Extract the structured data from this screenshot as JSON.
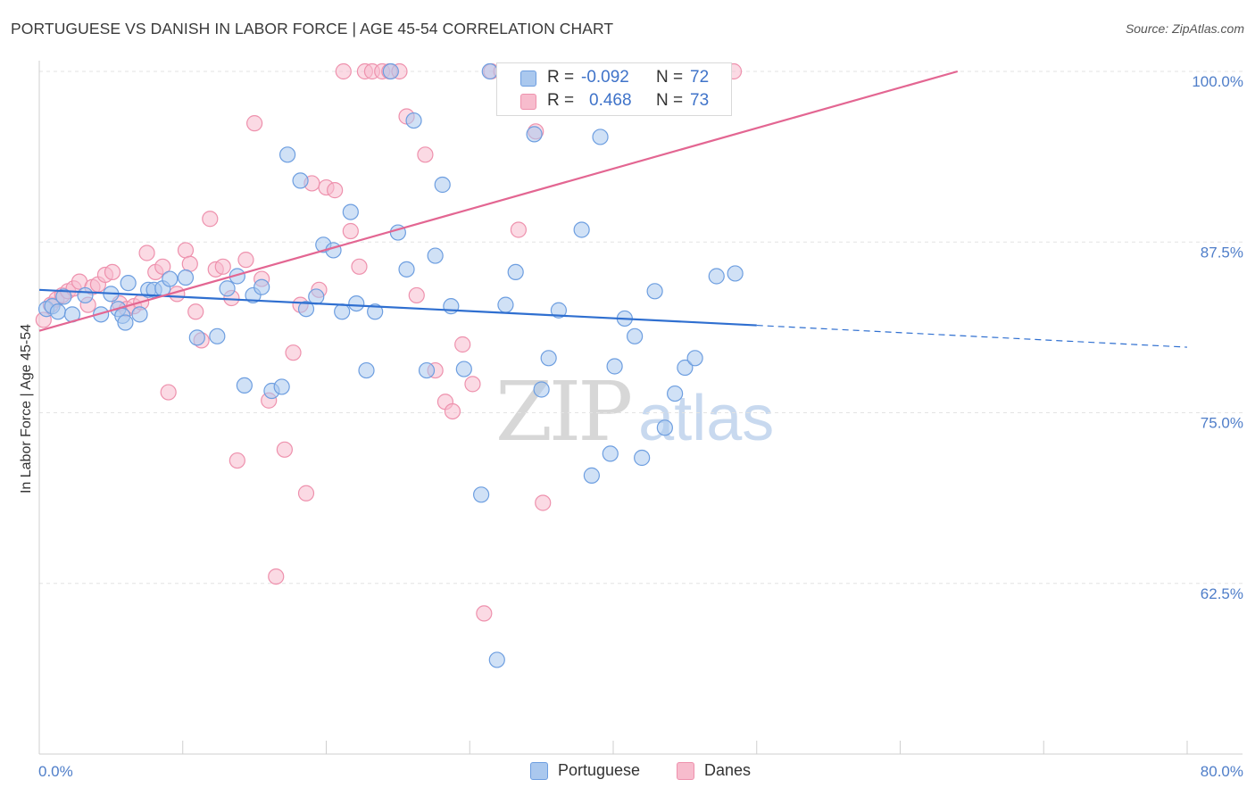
{
  "header": {
    "title": "PORTUGUESE VS DANISH IN LABOR FORCE | AGE 45-54 CORRELATION CHART",
    "source": "Source: ZipAtlas.com"
  },
  "watermark": {
    "zip": "ZIP",
    "atlas": "atlas"
  },
  "legend_top": {
    "rows": [
      {
        "r_label": "R =",
        "r_value": "-0.092",
        "n_label": "N =",
        "n_value": "72"
      },
      {
        "r_label": "R =",
        "r_value": "0.468",
        "n_label": "N =",
        "n_value": "73"
      }
    ]
  },
  "legend_bottom": {
    "items": [
      {
        "label": "Portuguese"
      },
      {
        "label": "Danes"
      }
    ]
  },
  "colors": {
    "portuguese_fill": "#aac8ee",
    "portuguese_stroke": "#6d9ee0",
    "portuguese_line": "#2f6fd0",
    "danes_fill": "#f7bccd",
    "danes_stroke": "#ee91ad",
    "danes_line": "#e36692",
    "tick_label": "#4f7ec9",
    "grid": "#e3e3e3"
  },
  "chart_data": {
    "type": "scatter",
    "title": "PORTUGUESE VS DANISH IN LABOR FORCE | AGE 45-54 CORRELATION CHART",
    "xlabel": "",
    "ylabel": "In Labor Force | Age 45-54",
    "xlim": [
      0,
      80
    ],
    "ylim": [
      50,
      100
    ],
    "x_tick_labels": [
      {
        "value": 0,
        "label": "0.0%"
      },
      {
        "value": 80,
        "label": "80.0%"
      }
    ],
    "y_tick_labels": [
      {
        "value": 100,
        "label": "100.0%"
      },
      {
        "value": 87.5,
        "label": "87.5%"
      },
      {
        "value": 75,
        "label": "75.0%"
      },
      {
        "value": 62.5,
        "label": "62.5%"
      }
    ],
    "grid": true,
    "legend_position": "bottom",
    "series": [
      {
        "name": "Portuguese",
        "r": -0.092,
        "n": 72,
        "trend": {
          "x0": 0,
          "y0": 84.0,
          "x1": 50,
          "y1": 81.4,
          "dash_x1": 80,
          "dash_y1": 79.8
        },
        "points": [
          [
            0.5,
            82.6
          ],
          [
            0.9,
            82.8
          ],
          [
            1.3,
            82.4
          ],
          [
            1.7,
            83.5
          ],
          [
            2.3,
            82.2
          ],
          [
            3.2,
            83.6
          ],
          [
            4.3,
            82.2
          ],
          [
            5.0,
            83.7
          ],
          [
            5.5,
            82.6
          ],
          [
            5.8,
            82.1
          ],
          [
            6.0,
            81.6
          ],
          [
            7.0,
            82.2
          ],
          [
            7.6,
            84.0
          ],
          [
            8.0,
            84.0
          ],
          [
            6.2,
            84.5
          ],
          [
            8.6,
            84.1
          ],
          [
            9.1,
            84.8
          ],
          [
            10.2,
            84.9
          ],
          [
            11.0,
            80.5
          ],
          [
            12.4,
            80.6
          ],
          [
            13.1,
            84.1
          ],
          [
            13.8,
            85.0
          ],
          [
            14.3,
            77.0
          ],
          [
            14.9,
            83.6
          ],
          [
            15.5,
            84.2
          ],
          [
            16.2,
            76.6
          ],
          [
            16.9,
            76.9
          ],
          [
            17.3,
            93.9
          ],
          [
            18.2,
            92.0
          ],
          [
            18.6,
            82.6
          ],
          [
            19.3,
            83.5
          ],
          [
            19.8,
            87.3
          ],
          [
            20.5,
            86.9
          ],
          [
            21.1,
            82.4
          ],
          [
            21.7,
            89.7
          ],
          [
            22.1,
            83.0
          ],
          [
            22.8,
            78.1
          ],
          [
            23.4,
            82.4
          ],
          [
            24.5,
            100.0
          ],
          [
            25.0,
            88.2
          ],
          [
            25.6,
            85.5
          ],
          [
            26.1,
            96.4
          ],
          [
            27.0,
            78.1
          ],
          [
            27.6,
            86.5
          ],
          [
            28.1,
            91.7
          ],
          [
            28.7,
            82.8
          ],
          [
            29.6,
            78.2
          ],
          [
            30.8,
            69.0
          ],
          [
            31.4,
            100.0
          ],
          [
            31.9,
            56.9
          ],
          [
            32.5,
            82.9
          ],
          [
            33.2,
            85.3
          ],
          [
            34.1,
            100.0
          ],
          [
            34.5,
            95.4
          ],
          [
            35.0,
            76.7
          ],
          [
            35.5,
            79.0
          ],
          [
            36.2,
            82.5
          ],
          [
            37.8,
            88.4
          ],
          [
            38.5,
            70.4
          ],
          [
            39.1,
            95.2
          ],
          [
            39.8,
            72.0
          ],
          [
            40.1,
            78.4
          ],
          [
            40.8,
            81.9
          ],
          [
            41.5,
            80.6
          ],
          [
            42.0,
            71.7
          ],
          [
            42.9,
            83.9
          ],
          [
            43.6,
            73.9
          ],
          [
            44.3,
            76.4
          ],
          [
            45.0,
            78.3
          ],
          [
            45.7,
            79.0
          ],
          [
            47.2,
            85.0
          ],
          [
            48.5,
            85.2
          ]
        ]
      },
      {
        "name": "Danes",
        "r": 0.468,
        "n": 73,
        "trend": {
          "x0": 0,
          "y0": 81.0,
          "x1": 64,
          "y1": 100.0
        },
        "points": [
          [
            0.3,
            81.8
          ],
          [
            0.8,
            82.9
          ],
          [
            1.2,
            83.3
          ],
          [
            1.6,
            83.6
          ],
          [
            2.0,
            83.9
          ],
          [
            2.4,
            84.1
          ],
          [
            2.8,
            84.6
          ],
          [
            3.4,
            82.9
          ],
          [
            3.7,
            84.2
          ],
          [
            4.1,
            84.4
          ],
          [
            4.6,
            85.1
          ],
          [
            5.1,
            85.3
          ],
          [
            5.6,
            83.0
          ],
          [
            6.1,
            82.6
          ],
          [
            6.6,
            82.8
          ],
          [
            7.1,
            83.1
          ],
          [
            7.5,
            86.7
          ],
          [
            8.1,
            85.3
          ],
          [
            8.6,
            85.7
          ],
          [
            9.0,
            76.5
          ],
          [
            9.6,
            83.7
          ],
          [
            10.2,
            86.9
          ],
          [
            10.5,
            85.9
          ],
          [
            10.9,
            82.4
          ],
          [
            11.3,
            80.3
          ],
          [
            11.9,
            89.2
          ],
          [
            12.3,
            85.5
          ],
          [
            12.8,
            85.7
          ],
          [
            13.4,
            83.4
          ],
          [
            13.8,
            71.5
          ],
          [
            14.4,
            86.2
          ],
          [
            15.0,
            96.2
          ],
          [
            15.5,
            84.8
          ],
          [
            16.0,
            75.9
          ],
          [
            16.5,
            63.0
          ],
          [
            17.1,
            72.3
          ],
          [
            17.7,
            79.4
          ],
          [
            18.2,
            82.9
          ],
          [
            18.6,
            69.1
          ],
          [
            19.0,
            91.8
          ],
          [
            19.5,
            84.0
          ],
          [
            20.0,
            91.5
          ],
          [
            20.6,
            91.3
          ],
          [
            21.2,
            100.0
          ],
          [
            21.7,
            88.3
          ],
          [
            22.3,
            85.7
          ],
          [
            22.7,
            100.0
          ],
          [
            23.2,
            100.0
          ],
          [
            23.9,
            100.0
          ],
          [
            24.4,
            100.0
          ],
          [
            25.1,
            100.0
          ],
          [
            25.6,
            96.7
          ],
          [
            26.3,
            83.6
          ],
          [
            26.9,
            93.9
          ],
          [
            27.6,
            78.1
          ],
          [
            28.3,
            75.8
          ],
          [
            28.8,
            75.1
          ],
          [
            29.5,
            80.0
          ],
          [
            30.2,
            77.1
          ],
          [
            31.0,
            60.3
          ],
          [
            31.5,
            100.0
          ],
          [
            32.2,
            100.0
          ],
          [
            33.4,
            88.4
          ],
          [
            34.6,
            95.6
          ],
          [
            35.1,
            68.4
          ],
          [
            36.4,
            100.0
          ],
          [
            37.0,
            100.0
          ],
          [
            38.3,
            100.0
          ],
          [
            39.2,
            100.0
          ],
          [
            40.0,
            100.0
          ],
          [
            41.5,
            100.0
          ],
          [
            43.8,
            100.0
          ],
          [
            48.4,
            100.0
          ]
        ]
      }
    ]
  }
}
